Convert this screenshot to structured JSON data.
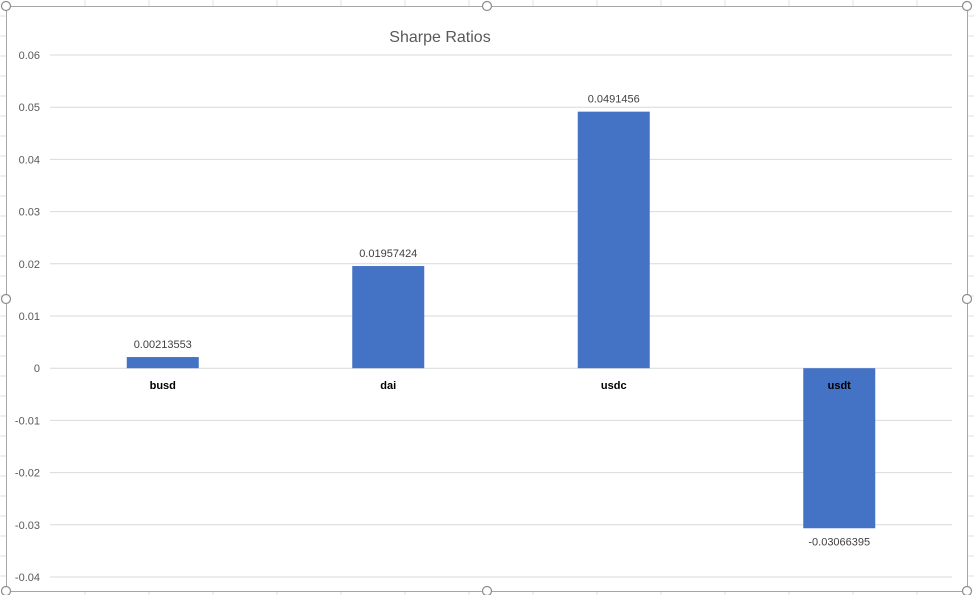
{
  "chart_data": {
    "type": "bar",
    "title": "Sharpe Ratios",
    "xlabel": "",
    "ylabel": "",
    "categories": [
      "busd",
      "dai",
      "usdc",
      "usdt"
    ],
    "values": [
      0.00213553,
      0.01957424,
      0.0491456,
      -0.03066395
    ],
    "data_labels": [
      "0.00213553",
      "0.01957424",
      "0.0491456",
      "-0.03066395"
    ],
    "ylim": [
      -0.04,
      0.06
    ],
    "yticks": [
      "0.06",
      "0.05",
      "0.04",
      "0.03",
      "0.02",
      "0.01",
      "0",
      "-0.01",
      "-0.02",
      "-0.03",
      "-0.04"
    ],
    "ytick_values": [
      0.06,
      0.05,
      0.04,
      0.03,
      0.02,
      0.01,
      0,
      -0.01,
      -0.02,
      -0.03,
      -0.04
    ],
    "grid": true,
    "legend": "none",
    "bar_color": "#4472C4",
    "gridline_color": "#d9d9d9",
    "frame_color": "#a6a6a6"
  }
}
